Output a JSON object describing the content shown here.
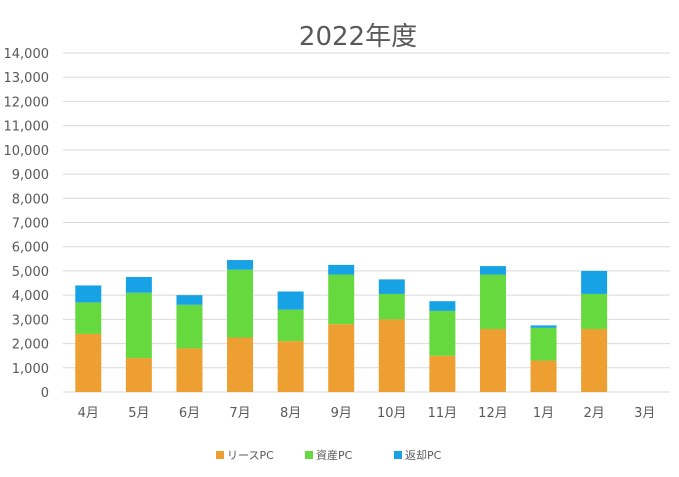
{
  "chart_data": {
    "type": "bar",
    "stacked": true,
    "title": "2022年度",
    "xlabel": "",
    "ylabel": "",
    "categories": [
      "4月",
      "5月",
      "6月",
      "7月",
      "8月",
      "9月",
      "10月",
      "11月",
      "12月",
      "1月",
      "2月",
      "3月"
    ],
    "series": [
      {
        "name": "リースPC",
        "color": "#ED9F32",
        "values": [
          2400,
          1400,
          1800,
          2250,
          2100,
          2800,
          3000,
          1500,
          2600,
          1300,
          2600,
          0
        ]
      },
      {
        "name": "資産PC",
        "color": "#66D93E",
        "values": [
          1300,
          2700,
          1800,
          2800,
          1300,
          2050,
          1050,
          1850,
          2250,
          1350,
          1450,
          0
        ]
      },
      {
        "name": "返却PC",
        "color": "#17A2E5",
        "values": [
          700,
          650,
          400,
          400,
          750,
          400,
          600,
          400,
          350,
          100,
          950,
          0
        ]
      }
    ],
    "ylim": [
      0,
      14000
    ],
    "yticks": [
      "0",
      "1,000",
      "2,000",
      "3,000",
      "4,000",
      "5,000",
      "6,000",
      "7,000",
      "8,000",
      "9,000",
      "10,000",
      "11,000",
      "12,000",
      "13,000",
      "14,000"
    ],
    "grid": true,
    "legend": "bottom"
  }
}
